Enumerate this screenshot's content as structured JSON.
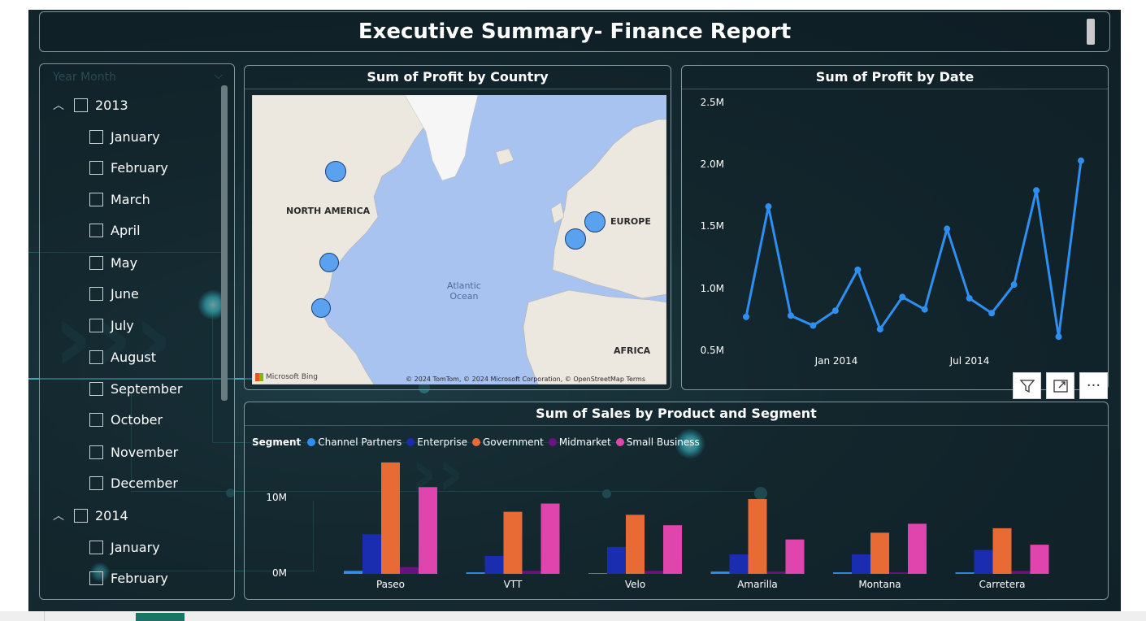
{
  "header": {
    "title": "Executive Summary- Finance Report"
  },
  "slicer": {
    "header": "Year Month",
    "items": [
      {
        "label": "2013",
        "level": 0
      },
      {
        "label": "January",
        "level": 1
      },
      {
        "label": "February",
        "level": 1
      },
      {
        "label": "March",
        "level": 1
      },
      {
        "label": "April",
        "level": 1
      },
      {
        "label": "May",
        "level": 1
      },
      {
        "label": "June",
        "level": 1
      },
      {
        "label": "July",
        "level": 1
      },
      {
        "label": "August",
        "level": 1
      },
      {
        "label": "September",
        "level": 1
      },
      {
        "label": "October",
        "level": 1
      },
      {
        "label": "November",
        "level": 1
      },
      {
        "label": "December",
        "level": 1
      },
      {
        "label": "2014",
        "level": 0
      },
      {
        "label": "January",
        "level": 1
      },
      {
        "label": "February",
        "level": 1
      }
    ]
  },
  "map": {
    "title": "Sum of Profit by Country",
    "continents": [
      "NORTH AMERICA",
      "EUROPE",
      "AFRICA"
    ],
    "ocean": [
      "Atlantic",
      "Ocean"
    ],
    "credit": "© 2024 TomTom, © 2024 Microsoft Corporation, © OpenStreetMap  Terms",
    "bing": "Microsoft Bing",
    "bubble_color": "#5aa2ef"
  },
  "line_chart": {
    "title": "Sum of Profit by Date",
    "y_ticks": [
      "2.5M",
      "2.0M",
      "1.5M",
      "1.0M",
      "0.5M"
    ],
    "x_ticks": [
      "Jan 2014",
      "Jul 2014"
    ]
  },
  "visual_buttons": {
    "filter": "filter-icon",
    "focus": "focus-mode-icon",
    "more": "more-options-icon"
  },
  "bar_chart": {
    "title": "Sum of Sales by Product and Segment",
    "legend_title": "Segment",
    "y_ticks": [
      "10M",
      "0M"
    ]
  },
  "chart_data": [
    {
      "type": "line",
      "title": "Sum of Profit by Date",
      "xlabel": "",
      "ylabel": "",
      "ylim": [
        0.5,
        2.5
      ],
      "y_unit": "M",
      "x": [
        "2013-09",
        "2013-10",
        "2013-11",
        "2013-12",
        "2014-01",
        "2014-02",
        "2014-03",
        "2014-04",
        "2014-05",
        "2014-06",
        "2014-07",
        "2014-08",
        "2014-09",
        "2014-10",
        "2014-11",
        "2014-12"
      ],
      "values": [
        0.77,
        1.66,
        0.78,
        0.7,
        0.82,
        1.15,
        0.67,
        0.93,
        0.83,
        1.48,
        0.92,
        0.8,
        1.03,
        1.79,
        0.61,
        2.03
      ],
      "color": "#2f8ff0",
      "grid": false
    },
    {
      "type": "bar",
      "title": "Sum of Sales by Product and Segment",
      "legend_title": "Segment",
      "legend_position": "top-left",
      "ylabel": "",
      "ylim": [
        0,
        15
      ],
      "y_unit": "M",
      "categories": [
        "Paseo",
        "VTT",
        "Velo",
        "Amarilla",
        "Montana",
        "Carretera"
      ],
      "series": [
        {
          "name": "Channel Partners",
          "color": "#2f8ff0",
          "values": [
            0.4,
            0.2,
            0.1,
            0.3,
            0.2,
            0.2
          ]
        },
        {
          "name": "Enterprise",
          "color": "#1a2cb0",
          "values": [
            5.3,
            2.4,
            3.6,
            2.6,
            2.6,
            3.2
          ]
        },
        {
          "name": "Government",
          "color": "#e86a35",
          "values": [
            14.9,
            8.3,
            7.9,
            10.0,
            5.5,
            6.1
          ]
        },
        {
          "name": "Midmarket",
          "color": "#6a1283",
          "values": [
            0.9,
            0.4,
            0.4,
            0.3,
            0.2,
            0.4
          ]
        },
        {
          "name": "Small Business",
          "color": "#e044ad",
          "values": [
            11.6,
            9.4,
            6.5,
            4.6,
            6.7,
            3.9
          ]
        }
      ]
    }
  ]
}
